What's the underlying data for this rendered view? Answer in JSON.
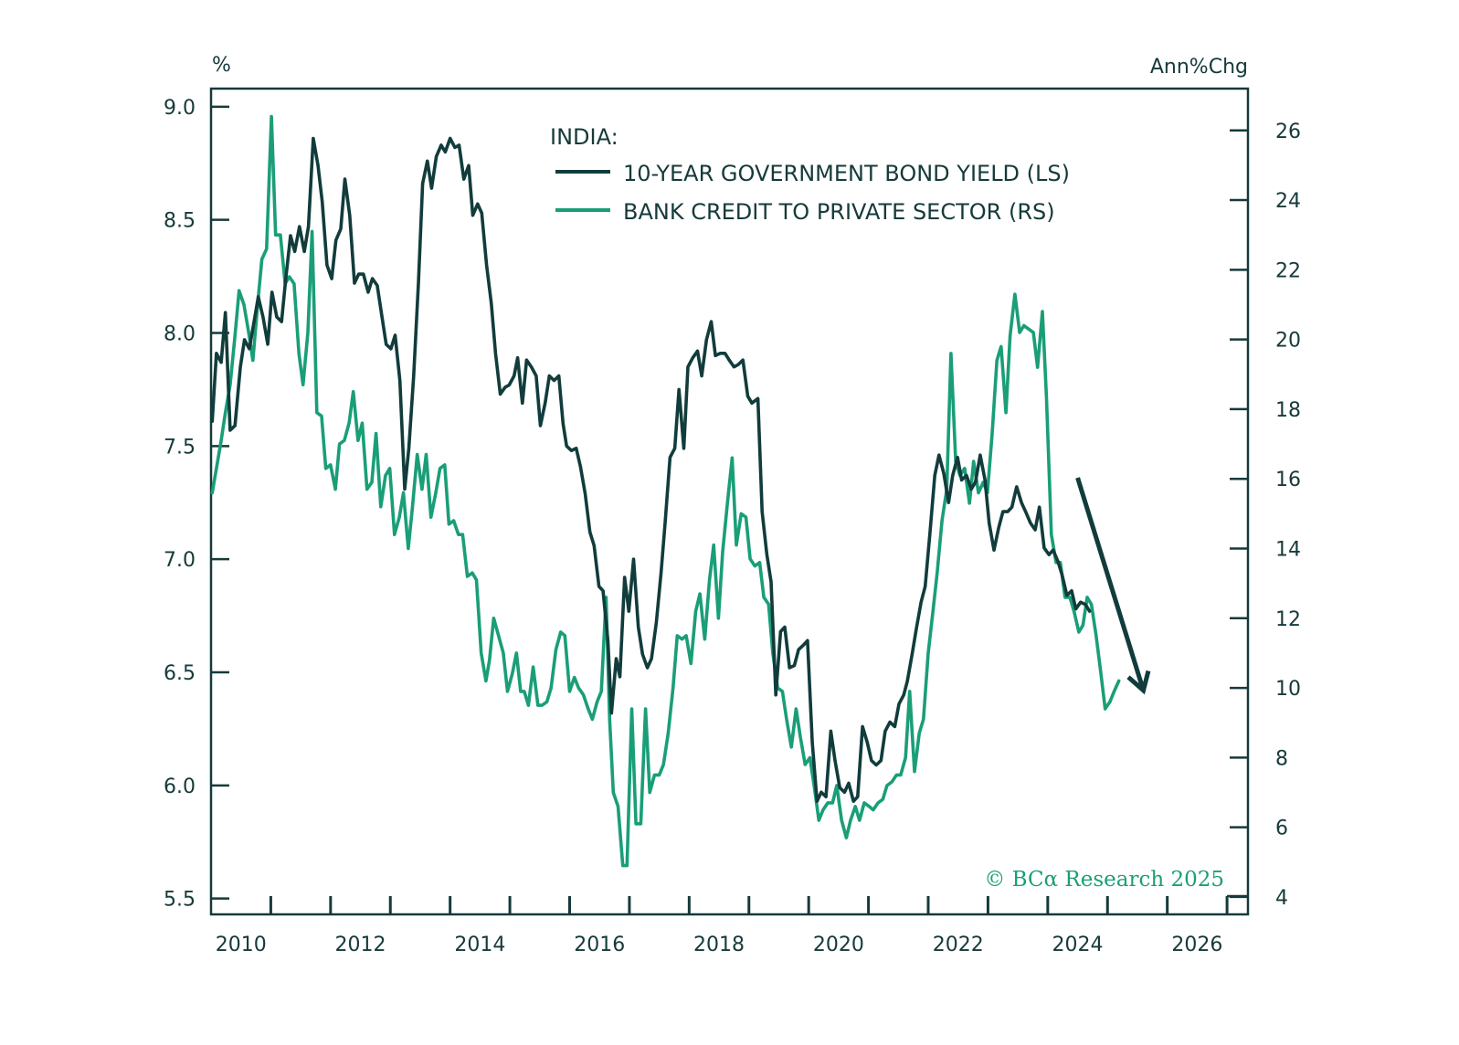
{
  "chart_data": {
    "type": "line",
    "title": "INDIA:",
    "left_axis_unit": "%",
    "right_axis_unit": "Ann%Chg",
    "xlim": [
      2010.0,
      2027.35
    ],
    "ylim_left": [
      5.43,
      9.08
    ],
    "ylim_right": [
      3.5,
      27.2
    ],
    "x_ticks": [
      2010,
      2011,
      2012,
      2013,
      2014,
      2015,
      2016,
      2017,
      2018,
      2019,
      2020,
      2021,
      2022,
      2023,
      2024,
      2025,
      2026,
      2027
    ],
    "x_tick_labels": [
      "2010",
      "2012",
      "2014",
      "2016",
      "2018",
      "2020",
      "2022",
      "2024",
      "2026"
    ],
    "x_tick_label_years": [
      2010,
      2012,
      2014,
      2016,
      2018,
      2020,
      2022,
      2024,
      2026
    ],
    "left_ticks": [
      5.5,
      6.0,
      6.5,
      7.0,
      7.5,
      8.0,
      8.5,
      9.0
    ],
    "left_tick_labels": [
      "5.5",
      "6.0",
      "6.5",
      "7.0",
      "7.5",
      "8.0",
      "8.5",
      "9.0"
    ],
    "right_ticks": [
      4,
      6,
      8,
      10,
      12,
      14,
      16,
      18,
      20,
      22,
      24,
      26
    ],
    "right_tick_labels": [
      "4",
      "6",
      "8",
      "10",
      "12",
      "14",
      "16",
      "18",
      "20",
      "22",
      "24",
      "26"
    ],
    "legend_placement": "top-center",
    "grid": false,
    "series": [
      {
        "name": "10-YEAR GOVERNMENT BOND YIELD (LS)",
        "axis": "left",
        "color": "#123c3c",
        "x": [
          2010.02,
          2010.09,
          2010.17,
          2010.24,
          2010.32,
          2010.4,
          2010.49,
          2010.56,
          2010.64,
          2010.72,
          2010.79,
          2010.87,
          2010.95,
          2011.02,
          2011.1,
          2011.18,
          2011.25,
          2011.33,
          2011.4,
          2011.48,
          2011.56,
          2011.63,
          2011.71,
          2011.79,
          2011.86,
          2011.94,
          2012.02,
          2012.09,
          2012.17,
          2012.24,
          2012.32,
          2012.4,
          2012.47,
          2012.55,
          2012.63,
          2012.7,
          2012.78,
          2012.85,
          2012.93,
          2013.01,
          2013.08,
          2013.16,
          2013.24,
          2013.31,
          2013.39,
          2013.47,
          2013.54,
          2013.62,
          2013.69,
          2013.77,
          2013.85,
          2013.92,
          2014.0,
          2014.08,
          2014.15,
          2014.23,
          2014.31,
          2014.38,
          2014.46,
          2014.53,
          2014.61,
          2014.69,
          2014.76,
          2014.84,
          2014.92,
          2014.99,
          2015.07,
          2015.13,
          2015.21,
          2015.28,
          2015.36,
          2015.44,
          2015.51,
          2015.59,
          2015.66,
          2015.74,
          2015.82,
          2015.89,
          2015.95,
          2016.03,
          2016.11,
          2016.18,
          2016.26,
          2016.34,
          2016.41,
          2016.49,
          2016.56,
          2016.64,
          2016.7,
          2016.78,
          2016.84,
          2016.92,
          2016.99,
          2017.07,
          2017.15,
          2017.22,
          2017.3,
          2017.37,
          2017.45,
          2017.53,
          2017.6,
          2017.68,
          2017.76,
          2017.83,
          2017.91,
          2017.98,
          2018.06,
          2018.14,
          2018.21,
          2018.29,
          2018.37,
          2018.44,
          2018.52,
          2018.6,
          2018.67,
          2018.75,
          2018.82,
          2018.9,
          2018.98,
          2019.05,
          2019.15,
          2019.22,
          2019.3,
          2019.37,
          2019.45,
          2019.53,
          2019.6,
          2019.68,
          2019.76,
          2019.83,
          2019.91,
          2019.98,
          2020.06,
          2020.14,
          2020.21,
          2020.29,
          2020.37,
          2020.44,
          2020.52,
          2020.6,
          2020.67,
          2020.75,
          2020.82,
          2020.9,
          2020.98,
          2021.05,
          2021.13,
          2021.21,
          2021.28,
          2021.36,
          2021.44,
          2021.51,
          2021.59,
          2021.65,
          2021.73,
          2021.8,
          2021.88,
          2021.95,
          2022.03,
          2022.11,
          2022.18,
          2022.26,
          2022.34,
          2022.41,
          2022.49,
          2022.56,
          2022.64,
          2022.72,
          2022.79,
          2022.87,
          2022.95,
          2023.02,
          2023.1,
          2023.18,
          2023.25,
          2023.33,
          2023.4,
          2023.48,
          2023.56,
          2023.63,
          2023.71,
          2023.79,
          2023.86,
          2023.94,
          2024.02,
          2024.09,
          2024.17,
          2024.24,
          2024.32,
          2024.4,
          2024.47,
          2024.55,
          2024.63,
          2024.7
        ],
        "y": [
          7.61,
          7.91,
          7.87,
          8.09,
          7.57,
          7.59,
          7.85,
          7.97,
          7.93,
          8.05,
          8.16,
          8.07,
          7.95,
          8.18,
          8.07,
          8.05,
          8.24,
          8.43,
          8.36,
          8.47,
          8.36,
          8.47,
          8.86,
          8.74,
          8.58,
          8.3,
          8.24,
          8.41,
          8.46,
          8.68,
          8.52,
          8.22,
          8.26,
          8.26,
          8.18,
          8.24,
          8.21,
          8.09,
          7.95,
          7.93,
          7.99,
          7.79,
          7.31,
          7.49,
          7.81,
          8.22,
          8.66,
          8.76,
          8.64,
          8.78,
          8.83,
          8.8,
          8.86,
          8.82,
          8.83,
          8.68,
          8.74,
          8.52,
          8.57,
          8.53,
          8.3,
          8.13,
          7.91,
          7.73,
          7.76,
          7.77,
          7.81,
          7.89,
          7.69,
          7.88,
          7.85,
          7.81,
          7.59,
          7.69,
          7.81,
          7.79,
          7.81,
          7.6,
          7.5,
          7.48,
          7.49,
          7.41,
          7.29,
          7.12,
          7.06,
          6.88,
          6.86,
          6.64,
          6.32,
          6.56,
          6.48,
          6.92,
          6.77,
          7.0,
          6.7,
          6.58,
          6.52,
          6.56,
          6.72,
          6.94,
          7.17,
          7.45,
          7.49,
          7.75,
          7.49,
          7.85,
          7.89,
          7.92,
          7.81,
          7.97,
          8.05,
          7.9,
          7.91,
          7.91,
          7.88,
          7.85,
          7.86,
          7.88,
          7.72,
          7.69,
          7.71,
          7.21,
          7.02,
          6.9,
          6.4,
          6.68,
          6.7,
          6.52,
          6.53,
          6.6,
          6.62,
          6.64,
          6.19,
          5.93,
          5.97,
          5.95,
          6.24,
          6.11,
          5.99,
          5.97,
          6.01,
          5.93,
          5.95,
          6.26,
          6.19,
          6.11,
          6.09,
          6.11,
          6.24,
          6.28,
          6.26,
          6.36,
          6.4,
          6.46,
          6.58,
          6.69,
          6.81,
          6.88,
          7.12,
          7.37,
          7.46,
          7.38,
          7.25,
          7.37,
          7.45,
          7.35,
          7.37,
          7.31,
          7.34,
          7.46,
          7.35,
          7.16,
          7.04,
          7.14,
          7.21,
          7.21,
          7.23,
          7.32,
          7.25,
          7.21,
          7.16,
          7.13,
          7.23,
          7.05,
          7.02,
          7.04,
          6.99,
          6.93,
          6.84,
          6.86,
          6.78,
          6.81,
          6.8,
          6.77
        ]
      },
      {
        "name": "BANK CREDIT TO PRIVATE SECTOR (RS)",
        "axis": "right",
        "color": "#1a9e78",
        "x": [
          2010.02,
          2010.09,
          2010.17,
          2010.24,
          2010.32,
          2010.4,
          2010.47,
          2010.55,
          2010.63,
          2010.7,
          2010.78,
          2010.85,
          2010.93,
          2011.01,
          2011.08,
          2011.16,
          2011.24,
          2011.31,
          2011.39,
          2011.47,
          2011.54,
          2011.62,
          2011.69,
          2011.77,
          2011.85,
          2011.92,
          2012.0,
          2012.08,
          2012.15,
          2012.23,
          2012.31,
          2012.38,
          2012.46,
          2012.53,
          2012.61,
          2012.69,
          2012.76,
          2012.84,
          2012.92,
          2012.99,
          2013.07,
          2013.15,
          2013.22,
          2013.3,
          2013.37,
          2013.45,
          2013.53,
          2013.6,
          2013.68,
          2013.76,
          2013.83,
          2013.91,
          2013.98,
          2014.06,
          2014.14,
          2014.21,
          2014.29,
          2014.37,
          2014.44,
          2014.52,
          2014.6,
          2014.66,
          2014.73,
          2014.81,
          2014.89,
          2014.96,
          2015.04,
          2015.11,
          2015.18,
          2015.24,
          2015.31,
          2015.39,
          2015.47,
          2015.54,
          2015.62,
          2015.69,
          2015.77,
          2015.85,
          2015.92,
          2016.0,
          2016.08,
          2016.15,
          2016.23,
          2016.31,
          2016.38,
          2016.46,
          2016.53,
          2016.61,
          2016.67,
          2016.73,
          2016.81,
          2016.89,
          2016.96,
          2017.04,
          2017.11,
          2017.19,
          2017.27,
          2017.34,
          2017.42,
          2017.5,
          2017.57,
          2017.65,
          2017.73,
          2017.8,
          2017.88,
          2017.95,
          2018.03,
          2018.11,
          2018.18,
          2018.26,
          2018.34,
          2018.41,
          2018.49,
          2018.56,
          2018.64,
          2018.72,
          2018.79,
          2018.87,
          2018.95,
          2019.02,
          2019.1,
          2019.18,
          2019.25,
          2019.33,
          2019.4,
          2019.48,
          2019.56,
          2019.63,
          2019.71,
          2019.79,
          2019.86,
          2019.94,
          2020.02,
          2020.09,
          2020.17,
          2020.24,
          2020.32,
          2020.4,
          2020.47,
          2020.55,
          2020.63,
          2020.7,
          2020.78,
          2020.85,
          2020.93,
          2021.01,
          2021.08,
          2021.16,
          2021.24,
          2021.31,
          2021.39,
          2021.47,
          2021.54,
          2021.62,
          2021.69,
          2021.77,
          2021.85,
          2021.92,
          2022.0,
          2022.08,
          2022.15,
          2022.23,
          2022.31,
          2022.38,
          2022.46,
          2022.53,
          2022.61,
          2022.69,
          2022.76,
          2022.84,
          2022.92,
          2022.99,
          2023.07,
          2023.15,
          2023.22,
          2023.3,
          2023.37,
          2023.45,
          2023.53,
          2023.6,
          2023.68,
          2023.76,
          2023.83,
          2023.91,
          2023.98,
          2024.06,
          2024.14,
          2024.21,
          2024.29,
          2024.37,
          2024.44,
          2024.52,
          2024.59,
          2024.66,
          2024.73,
          2024.81,
          2024.89,
          2024.96,
          2025.04,
          2025.11,
          2025.19
        ],
        "y": [
          15.6,
          16.3,
          17.1,
          17.9,
          18.7,
          20.1,
          21.4,
          21.0,
          20.2,
          19.4,
          21.0,
          22.3,
          22.6,
          26.4,
          23.0,
          23.0,
          21.6,
          21.8,
          21.6,
          19.6,
          18.7,
          20.2,
          23.1,
          17.9,
          17.8,
          16.3,
          16.4,
          15.7,
          17.0,
          17.1,
          17.6,
          18.5,
          17.1,
          17.6,
          15.7,
          15.9,
          17.3,
          15.2,
          16.1,
          16.3,
          14.4,
          14.9,
          15.6,
          14.0,
          15.2,
          16.7,
          15.7,
          16.7,
          14.9,
          15.6,
          16.3,
          16.4,
          14.7,
          14.8,
          14.4,
          14.4,
          13.2,
          13.3,
          13.1,
          11.0,
          10.2,
          10.8,
          12.0,
          11.5,
          11.0,
          9.9,
          10.4,
          11.0,
          9.9,
          9.9,
          9.5,
          10.6,
          9.5,
          9.5,
          9.6,
          10.0,
          11.1,
          11.6,
          11.5,
          9.9,
          10.3,
          10.0,
          9.8,
          9.4,
          9.1,
          9.6,
          9.9,
          12.6,
          9.1,
          7.0,
          6.6,
          4.9,
          4.9,
          9.4,
          6.1,
          6.1,
          9.4,
          7.0,
          7.5,
          7.5,
          7.8,
          8.7,
          10.0,
          11.5,
          11.4,
          11.5,
          10.7,
          12.2,
          12.7,
          11.4,
          13.1,
          14.1,
          12.0,
          13.9,
          15.3,
          16.6,
          14.1,
          15.0,
          14.9,
          13.7,
          13.5,
          13.6,
          12.6,
          12.4,
          11.0,
          10.0,
          9.9,
          9.1,
          8.3,
          9.4,
          8.6,
          7.8,
          8.0,
          7.2,
          6.2,
          6.5,
          6.7,
          6.7,
          7.2,
          6.2,
          5.7,
          6.2,
          6.6,
          6.2,
          6.7,
          6.6,
          6.5,
          6.7,
          6.8,
          7.2,
          7.3,
          7.5,
          7.5,
          8.0,
          9.9,
          7.6,
          8.7,
          9.1,
          11.0,
          12.2,
          13.3,
          14.8,
          15.7,
          19.6,
          16.5,
          16.1,
          16.3,
          15.3,
          16.5,
          15.6,
          15.9,
          15.6,
          17.3,
          19.4,
          19.8,
          17.9,
          20.1,
          21.3,
          20.2,
          20.4,
          20.3,
          20.2,
          19.2,
          20.8,
          18.3,
          14.4,
          13.6,
          13.6,
          12.6,
          12.6,
          12.2,
          11.6,
          11.8,
          12.6,
          12.4,
          11.5,
          10.4,
          9.4,
          9.6,
          9.9,
          10.2
        ]
      }
    ],
    "annotations": [
      {
        "type": "arrow",
        "description": "downward trend arrow",
        "from": [
          2024.5,
          7.36
        ],
        "to": [
          2025.6,
          6.42
        ],
        "axis": "left",
        "color": "#123c3c"
      }
    ],
    "copyright": "© BCα Research 2025"
  }
}
